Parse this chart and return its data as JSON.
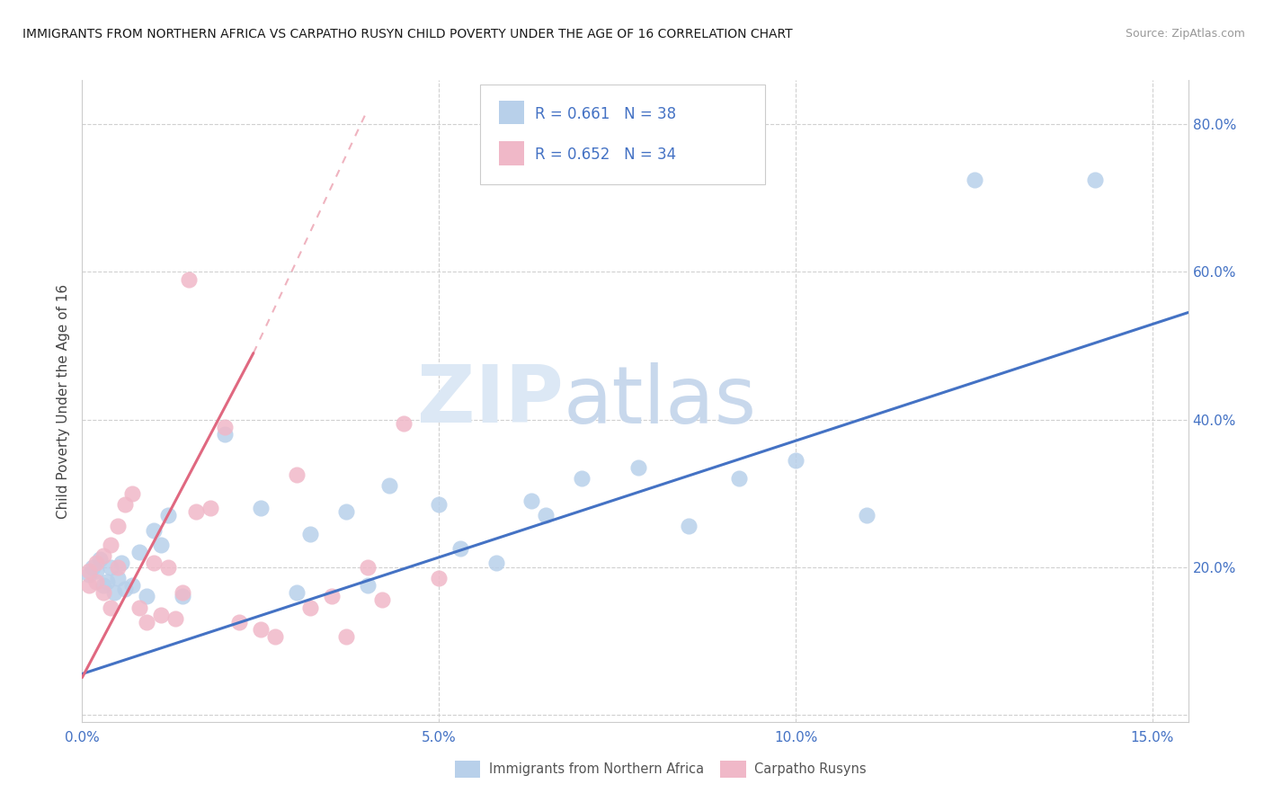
{
  "title": "IMMIGRANTS FROM NORTHERN AFRICA VS CARPATHO RUSYN CHILD POVERTY UNDER THE AGE OF 16 CORRELATION CHART",
  "source": "Source: ZipAtlas.com",
  "ylabel": "Child Poverty Under the Age of 16",
  "xlim": [
    0.0,
    0.155
  ],
  "ylim": [
    -0.01,
    0.86
  ],
  "xtick_vals": [
    0.0,
    0.05,
    0.1,
    0.15
  ],
  "xtick_labels": [
    "0.0%",
    "5.0%",
    "10.0%",
    "15.0%"
  ],
  "ytick_vals": [
    0.0,
    0.2,
    0.4,
    0.6,
    0.8
  ],
  "ytick_labels": [
    "",
    "20.0%",
    "40.0%",
    "60.0%",
    "80.0%"
  ],
  "legend_R_blue": "R = 0.661",
  "legend_N_blue": "N = 38",
  "legend_R_pink": "R = 0.652",
  "legend_N_pink": "N = 34",
  "legend_label_blue": "Immigrants from Northern Africa",
  "legend_label_pink": "Carpatho Rusyns",
  "blue_dot_color": "#b8d0ea",
  "blue_line_color": "#4472c4",
  "pink_dot_color": "#f0b8c8",
  "pink_line_color": "#e06880",
  "text_color": "#4472c4",
  "title_color": "#1a1a1a",
  "source_color": "#999999",
  "grid_color": "#d0d0d0",
  "watermark_zip_color": "#dce8f5",
  "watermark_atlas_color": "#c8d8ec",
  "blue_x": [
    0.001,
    0.0015,
    0.002,
    0.0025,
    0.003,
    0.0035,
    0.004,
    0.0045,
    0.005,
    0.0055,
    0.006,
    0.007,
    0.008,
    0.009,
    0.01,
    0.011,
    0.012,
    0.014,
    0.02,
    0.025,
    0.03,
    0.032,
    0.037,
    0.04,
    0.043,
    0.05,
    0.053,
    0.058,
    0.063,
    0.065,
    0.07,
    0.078,
    0.085,
    0.092,
    0.1,
    0.11,
    0.125,
    0.142
  ],
  "blue_y": [
    0.19,
    0.2,
    0.195,
    0.21,
    0.175,
    0.18,
    0.2,
    0.165,
    0.185,
    0.205,
    0.17,
    0.175,
    0.22,
    0.16,
    0.25,
    0.23,
    0.27,
    0.16,
    0.38,
    0.28,
    0.165,
    0.245,
    0.275,
    0.175,
    0.31,
    0.285,
    0.225,
    0.205,
    0.29,
    0.27,
    0.32,
    0.335,
    0.255,
    0.32,
    0.345,
    0.27,
    0.725,
    0.725
  ],
  "pink_x": [
    0.001,
    0.001,
    0.002,
    0.002,
    0.003,
    0.003,
    0.004,
    0.004,
    0.005,
    0.005,
    0.006,
    0.007,
    0.008,
    0.009,
    0.01,
    0.011,
    0.012,
    0.013,
    0.014,
    0.015,
    0.016,
    0.018,
    0.02,
    0.022,
    0.025,
    0.027,
    0.03,
    0.032,
    0.035,
    0.037,
    0.04,
    0.042,
    0.045,
    0.05
  ],
  "pink_y": [
    0.195,
    0.175,
    0.205,
    0.18,
    0.215,
    0.165,
    0.23,
    0.145,
    0.2,
    0.255,
    0.285,
    0.3,
    0.145,
    0.125,
    0.205,
    0.135,
    0.2,
    0.13,
    0.165,
    0.59,
    0.275,
    0.28,
    0.39,
    0.125,
    0.115,
    0.105,
    0.325,
    0.145,
    0.16,
    0.105,
    0.2,
    0.155,
    0.395,
    0.185
  ],
  "blue_line_x0": 0.0,
  "blue_line_x1": 0.155,
  "blue_line_y0": 0.055,
  "blue_line_y1": 0.545,
  "pink_line_solid_x0": 0.0,
  "pink_line_solid_x1": 0.024,
  "pink_line_solid_y0": 0.05,
  "pink_line_solid_y1": 0.49,
  "pink_line_dash_x0": 0.024,
  "pink_line_dash_x1": 0.04,
  "pink_line_dash_y0": 0.49,
  "pink_line_dash_y1": 0.82
}
